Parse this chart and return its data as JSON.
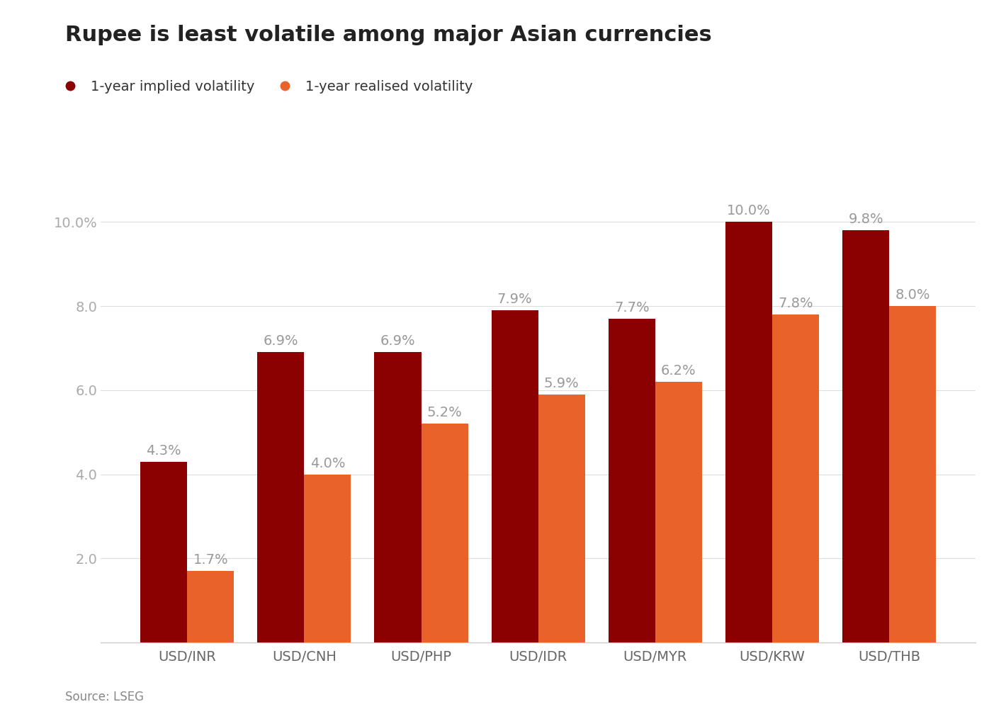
{
  "title": "Rupee is least volatile among major Asian currencies",
  "legend": [
    "1-year implied volatility",
    "1-year realised volatility"
  ],
  "legend_colors": [
    "#8B0000",
    "#E8622A"
  ],
  "categories": [
    "USD/INR",
    "USD/CNH",
    "USD/PHP",
    "USD/IDR",
    "USD/MYR",
    "USD/KRW",
    "USD/THB"
  ],
  "implied_values": [
    4.3,
    6.9,
    6.9,
    7.9,
    7.7,
    10.0,
    9.8
  ],
  "realised_values": [
    1.7,
    4.0,
    5.2,
    5.9,
    6.2,
    7.8,
    8.0
  ],
  "implied_color": "#8B0000",
  "realised_color": "#E8622A",
  "yticks": [
    2.0,
    4.0,
    6.0,
    8.0,
    10.0
  ],
  "ylim": [
    0,
    11.2
  ],
  "source": "Source: LSEG",
  "background_color": "#FFFFFF",
  "title_fontsize": 22,
  "legend_fontsize": 14,
  "tick_fontsize": 14,
  "annotation_fontsize": 14,
  "source_fontsize": 12,
  "bar_width": 0.4
}
